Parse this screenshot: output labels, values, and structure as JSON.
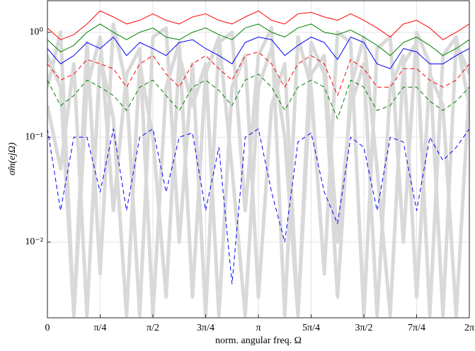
{
  "chart_data": {
    "type": "line",
    "xlabel": "norm. angular freq. Ω",
    "ylabel": "σ̂m(ejΩ)",
    "yscale": "log",
    "grid": true,
    "xlim": [
      0,
      6.283
    ],
    "ylim": [
      0.0019,
      2
    ],
    "xticks": [
      0,
      {
        "value": 0.785,
        "label": "π/4"
      },
      {
        "value": 1.571,
        "label": "π/2"
      },
      {
        "value": 2.356,
        "label": "3π/4"
      },
      {
        "value": 3.142,
        "label": "π"
      },
      {
        "value": 3.927,
        "label": "5π/4"
      },
      {
        "value": 4.712,
        "label": "3π/2"
      },
      {
        "value": 5.498,
        "label": "7π/4"
      },
      {
        "value": 6.283,
        "label": "2π"
      }
    ],
    "yticks": [
      {
        "value": 0.01,
        "label": "10⁻²"
      },
      {
        "value": 0.1,
        "label": "10⁻¹"
      },
      {
        "value": 1,
        "label": "10⁰"
      }
    ],
    "x": [
      0,
      0.196,
      0.393,
      0.589,
      0.785,
      0.982,
      1.178,
      1.374,
      1.571,
      1.767,
      1.963,
      2.16,
      2.356,
      2.553,
      2.749,
      2.945,
      3.142,
      3.338,
      3.534,
      3.731,
      3.927,
      4.123,
      4.32,
      4.516,
      4.712,
      4.909,
      5.105,
      5.301,
      5.498,
      5.694,
      5.89,
      6.087,
      6.283
    ],
    "series": [
      {
        "color": "#d9d9d9",
        "width": 5,
        "linestyle": "solid",
        "values": [
          0.3,
          1.0,
          0.002,
          0.8,
          0.005,
          1.2,
          0.3,
          0.002,
          0.9,
          1.1,
          0.01,
          0.5,
          0.002,
          0.8,
          1.0,
          0.02,
          0.6,
          1.1,
          0.002,
          0.9,
          0.3,
          0.005,
          1.0,
          0.8,
          0.002,
          0.7,
          0.9,
          0.01,
          1.0,
          0.5,
          0.002,
          0.8,
          0.4
        ]
      },
      {
        "color": "#d9d9d9",
        "width": 5,
        "linestyle": "solid",
        "values": [
          0.2,
          0.05,
          0.5,
          0.002,
          0.6,
          0.15,
          0.002,
          0.5,
          0.1,
          0.003,
          0.6,
          0.2,
          0.5,
          0.002,
          0.3,
          0.6,
          0.003,
          0.2,
          0.5,
          0.002,
          0.4,
          0.6,
          0.01,
          0.2,
          0.5,
          0.002,
          0.3,
          0.6,
          0.003,
          0.4,
          0.2,
          0.002,
          0.3
        ]
      },
      {
        "color": "#d9d9d9",
        "width": 5,
        "linestyle": "solid",
        "values": [
          0.6,
          0.3,
          0.002,
          0.3,
          0.9,
          0.02,
          0.4,
          0.7,
          0.002,
          0.3,
          0.8,
          0.003,
          0.4,
          0.9,
          0.05,
          0.002,
          0.3,
          0.7,
          0.1,
          0.002,
          0.8,
          0.4,
          0.003,
          0.3,
          0.9,
          0.05,
          0.002,
          0.5,
          0.8,
          0.002,
          0.6,
          0.9,
          0.2
        ]
      },
      {
        "color": "#ff0000",
        "width": 1,
        "linestyle": "solid",
        "values": [
          1.1,
          0.85,
          0.95,
          1.2,
          1.6,
          1.4,
          1.2,
          1.3,
          1.5,
          1.3,
          1.2,
          1.4,
          1.5,
          1.3,
          1.2,
          1.4,
          1.6,
          1.3,
          1.2,
          1.5,
          1.55,
          1.4,
          1.3,
          1.5,
          1.3,
          1.1,
          0.9,
          1.2,
          1.3,
          1.1,
          0.85,
          1.0,
          1.2
        ]
      },
      {
        "color": "#008000",
        "width": 1,
        "linestyle": "solid",
        "values": [
          0.85,
          0.65,
          0.75,
          1.0,
          1.2,
          1.0,
          0.85,
          1.0,
          1.1,
          0.9,
          0.85,
          1.0,
          1.1,
          0.95,
          0.85,
          1.1,
          1.2,
          1.0,
          0.9,
          1.1,
          1.2,
          1.0,
          0.95,
          1.05,
          0.9,
          0.75,
          0.6,
          0.8,
          0.9,
          0.75,
          0.6,
          0.7,
          0.85
        ]
      },
      {
        "color": "#0000ff",
        "width": 1,
        "linestyle": "solid",
        "values": [
          0.7,
          0.5,
          0.6,
          0.8,
          0.7,
          0.9,
          0.6,
          0.8,
          0.7,
          0.6,
          0.8,
          0.85,
          0.7,
          0.6,
          0.5,
          0.8,
          0.9,
          0.85,
          0.6,
          0.75,
          0.9,
          0.8,
          0.55,
          0.9,
          0.8,
          0.5,
          0.45,
          0.7,
          0.65,
          0.5,
          0.5,
          0.6,
          0.7
        ]
      },
      {
        "color": "#ff0000",
        "width": 1,
        "linestyle": "dashed",
        "values": [
          0.5,
          0.35,
          0.4,
          0.55,
          0.5,
          0.45,
          0.3,
          0.5,
          0.6,
          0.4,
          0.3,
          0.5,
          0.6,
          0.45,
          0.35,
          0.6,
          0.65,
          0.5,
          0.3,
          0.5,
          0.6,
          0.5,
          0.25,
          0.55,
          0.45,
          0.3,
          0.3,
          0.45,
          0.45,
          0.35,
          0.3,
          0.35,
          0.5
        ]
      },
      {
        "color": "#008000",
        "width": 1,
        "linestyle": "dashed",
        "values": [
          0.35,
          0.2,
          0.25,
          0.35,
          0.3,
          0.25,
          0.18,
          0.3,
          0.35,
          0.25,
          0.18,
          0.3,
          0.35,
          0.28,
          0.2,
          0.35,
          0.4,
          0.3,
          0.18,
          0.3,
          0.35,
          0.3,
          0.15,
          0.35,
          0.3,
          0.18,
          0.2,
          0.3,
          0.3,
          0.22,
          0.18,
          0.22,
          0.3
        ]
      },
      {
        "color": "#0000ff",
        "width": 1,
        "linestyle": "dashed",
        "values": [
          0.12,
          0.02,
          0.1,
          0.1,
          0.03,
          0.12,
          0.02,
          0.1,
          0.12,
          0.03,
          0.1,
          0.11,
          0.02,
          0.08,
          0.004,
          0.1,
          0.12,
          0.03,
          0.01,
          0.09,
          0.11,
          0.03,
          0.015,
          0.1,
          0.08,
          0.02,
          0.1,
          0.09,
          0.02,
          0.1,
          0.06,
          0.08,
          0.12
        ]
      }
    ]
  }
}
